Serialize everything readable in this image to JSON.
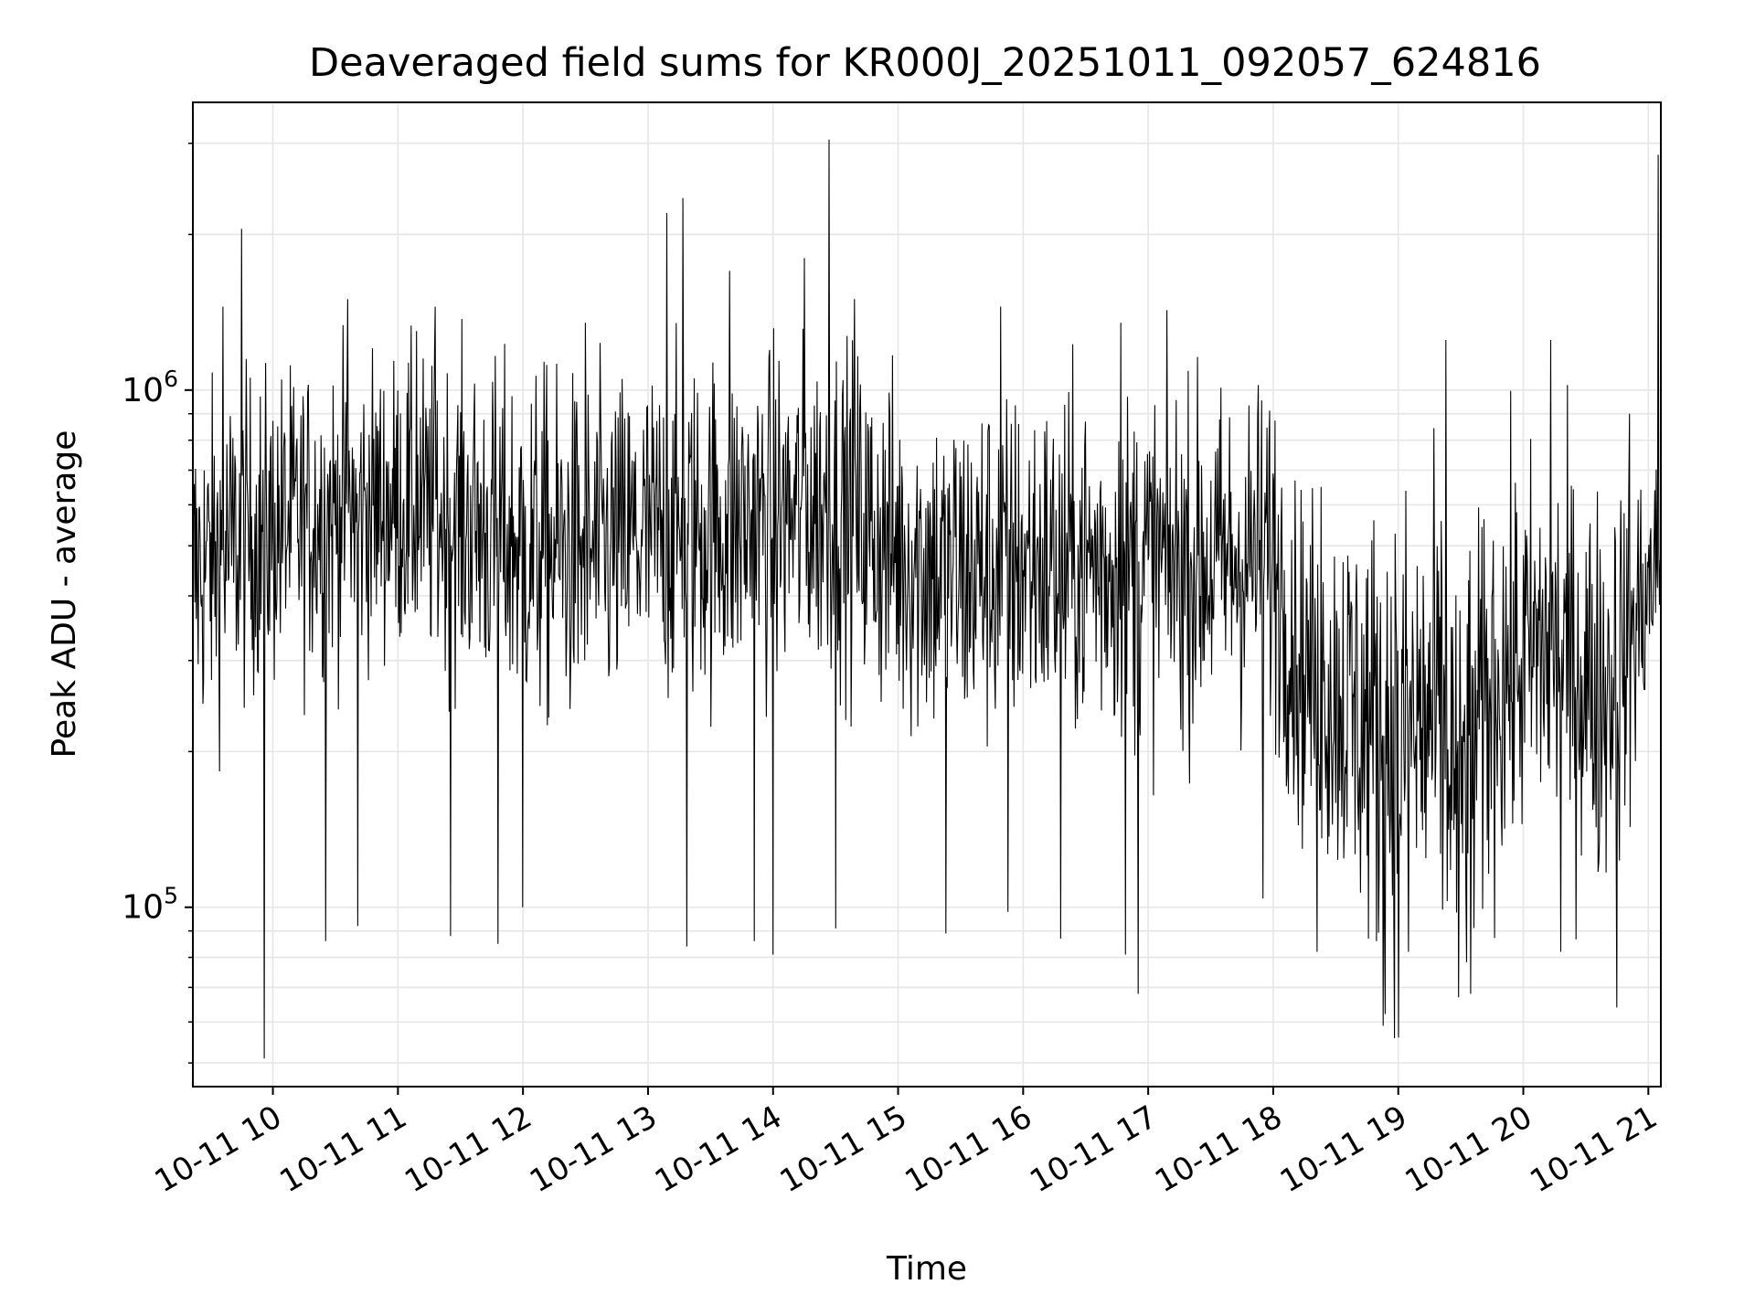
{
  "chart_data": {
    "type": "line",
    "title": "Deaveraged field sums for KR000J_20251011_092057_624816",
    "xlabel": "Time",
    "ylabel": "Peak ADU - average",
    "yscale": "log",
    "ylim": [
      45000,
      3600000
    ],
    "xlim_hours": [
      9.36,
      21.1
    ],
    "grid": true,
    "line_color": "#000000",
    "grid_color": "#e6e6e6",
    "x_ticks": [
      {
        "value": 10,
        "label": "10-11 10"
      },
      {
        "value": 11,
        "label": "10-11 11"
      },
      {
        "value": 12,
        "label": "10-11 12"
      },
      {
        "value": 13,
        "label": "10-11 13"
      },
      {
        "value": 14,
        "label": "10-11 14"
      },
      {
        "value": 15,
        "label": "10-11 15"
      },
      {
        "value": 16,
        "label": "10-11 16"
      },
      {
        "value": 17,
        "label": "10-11 17"
      },
      {
        "value": 18,
        "label": "10-11 18"
      },
      {
        "value": 19,
        "label": "10-11 19"
      },
      {
        "value": 20,
        "label": "10-11 20"
      },
      {
        "value": 21,
        "label": "10-11 21"
      }
    ],
    "y_major_ticks": [
      {
        "value": 100000,
        "base": "10",
        "exp": "5"
      },
      {
        "value": 1000000,
        "base": "10",
        "exp": "6"
      }
    ],
    "y_minor_ticks": [
      50000,
      60000,
      70000,
      80000,
      90000,
      200000,
      300000,
      400000,
      500000,
      600000,
      700000,
      800000,
      900000,
      2000000,
      3000000
    ],
    "series": [
      {
        "name": "Peak ADU - average",
        "n_points": 2200,
        "profile": {
          "x": [
            9.36,
            9.8,
            10.5,
            11.0,
            11.5,
            12.0,
            12.5,
            13.0,
            13.5,
            14.0,
            14.5,
            15.0,
            15.5,
            16.0,
            16.5,
            17.0,
            17.5,
            18.0,
            18.2,
            18.5,
            18.8,
            19.0,
            19.3,
            19.5,
            19.8,
            20.2,
            20.6,
            20.8,
            21.1
          ],
          "median": [
            440000,
            520000,
            580000,
            600000,
            560000,
            500000,
            480000,
            520000,
            540000,
            560000,
            600000,
            480000,
            440000,
            460000,
            460000,
            460000,
            460000,
            480000,
            300000,
            260000,
            220000,
            210000,
            230000,
            170000,
            280000,
            320000,
            260000,
            300000,
            480000
          ],
          "band_low": [
            200000,
            250000,
            260000,
            300000,
            250000,
            200000,
            200000,
            220000,
            220000,
            250000,
            280000,
            200000,
            180000,
            200000,
            200000,
            200000,
            200000,
            200000,
            150000,
            120000,
            100000,
            90000,
            110000,
            80000,
            130000,
            150000,
            120000,
            130000,
            300000
          ],
          "band_high": [
            900000,
            1000000,
            1000000,
            1100000,
            1000000,
            950000,
            900000,
            950000,
            1000000,
            1100000,
            1200000,
            950000,
            900000,
            900000,
            900000,
            950000,
            900000,
            950000,
            650000,
            650000,
            700000,
            800000,
            900000,
            550000,
            750000,
            850000,
            700000,
            700000,
            700000
          ]
        },
        "peaks": [
          {
            "x": 9.75,
            "y": 2050000
          },
          {
            "x": 9.6,
            "y": 1450000
          },
          {
            "x": 10.6,
            "y": 1500000
          },
          {
            "x": 11.3,
            "y": 1450000
          },
          {
            "x": 11.15,
            "y": 1300000
          },
          {
            "x": 12.5,
            "y": 1350000
          },
          {
            "x": 13.15,
            "y": 2200000
          },
          {
            "x": 13.28,
            "y": 2350000
          },
          {
            "x": 13.65,
            "y": 1700000
          },
          {
            "x": 14.25,
            "y": 1800000
          },
          {
            "x": 14.45,
            "y": 3050000
          },
          {
            "x": 14.65,
            "y": 1500000
          },
          {
            "x": 15.82,
            "y": 1450000
          },
          {
            "x": 16.78,
            "y": 1350000
          },
          {
            "x": 18.38,
            "y": 650000
          },
          {
            "x": 19.38,
            "y": 1250000
          },
          {
            "x": 20.22,
            "y": 1250000
          },
          {
            "x": 20.85,
            "y": 900000
          },
          {
            "x": 21.08,
            "y": 2850000
          }
        ],
        "dips": [
          {
            "x": 9.93,
            "y": 51000
          },
          {
            "x": 10.42,
            "y": 86000
          },
          {
            "x": 10.68,
            "y": 92000
          },
          {
            "x": 11.42,
            "y": 88000
          },
          {
            "x": 11.8,
            "y": 85000
          },
          {
            "x": 12.0,
            "y": 100000
          },
          {
            "x": 13.31,
            "y": 84000
          },
          {
            "x": 13.85,
            "y": 86000
          },
          {
            "x": 14.0,
            "y": 81000
          },
          {
            "x": 14.5,
            "y": 91000
          },
          {
            "x": 15.38,
            "y": 89000
          },
          {
            "x": 15.88,
            "y": 98000
          },
          {
            "x": 16.3,
            "y": 87000
          },
          {
            "x": 16.82,
            "y": 81000
          },
          {
            "x": 16.92,
            "y": 68000
          },
          {
            "x": 17.92,
            "y": 104000
          },
          {
            "x": 18.35,
            "y": 82000
          },
          {
            "x": 18.88,
            "y": 59000
          },
          {
            "x": 19.0,
            "y": 56000
          },
          {
            "x": 19.08,
            "y": 82000
          },
          {
            "x": 19.48,
            "y": 67000
          },
          {
            "x": 19.58,
            "y": 68000
          },
          {
            "x": 20.3,
            "y": 82000
          },
          {
            "x": 20.75,
            "y": 64000
          }
        ]
      }
    ]
  }
}
